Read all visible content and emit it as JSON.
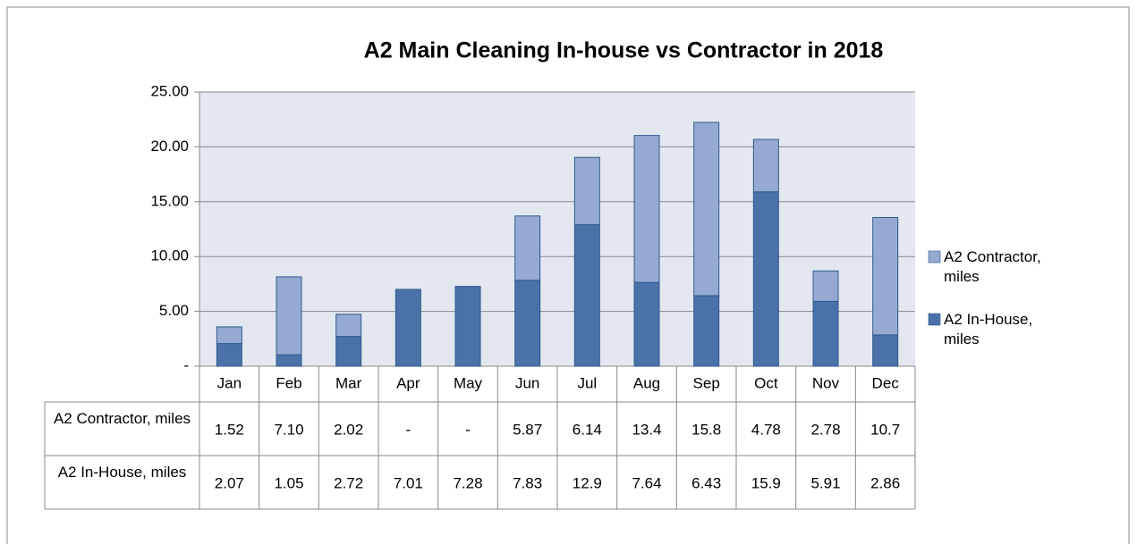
{
  "chart_data": {
    "type": "stacked-bar",
    "title": "A2 Main Cleaning In-house vs Contractor in 2018",
    "categories": [
      "Jan",
      "Feb",
      "Mar",
      "Apr",
      "May",
      "Jun",
      "Jul",
      "Aug",
      "Sep",
      "Oct",
      "Nov",
      "Dec"
    ],
    "series": [
      {
        "name": "A2 Contractor, miles",
        "color": "#95a9d2",
        "values": [
          1.52,
          7.1,
          2.02,
          0,
          0,
          5.87,
          6.14,
          13.4,
          15.8,
          4.78,
          2.78,
          10.7
        ],
        "value_labels": [
          "1.52",
          "7.10",
          "2.02",
          "-",
          "-",
          "5.87",
          "6.14",
          "13.4",
          "15.8",
          "4.78",
          "2.78",
          "10.7"
        ]
      },
      {
        "name": "A2 In-House, miles",
        "color": "#4a72a8",
        "values": [
          2.07,
          1.05,
          2.72,
          7.01,
          7.28,
          7.83,
          12.9,
          7.64,
          6.43,
          15.9,
          5.91,
          2.86
        ]
      }
    ],
    "ylim": [
      0,
      25
    ],
    "yticks": [
      {
        "value": 0,
        "label": "-"
      },
      {
        "value": 5,
        "label": "5.00"
      },
      {
        "value": 10,
        "label": "10.00"
      },
      {
        "value": 15,
        "label": "15.00"
      },
      {
        "value": 20,
        "label": "20.00"
      },
      {
        "value": 25,
        "label": "25.00"
      }
    ],
    "grid": true,
    "legend": "right"
  }
}
